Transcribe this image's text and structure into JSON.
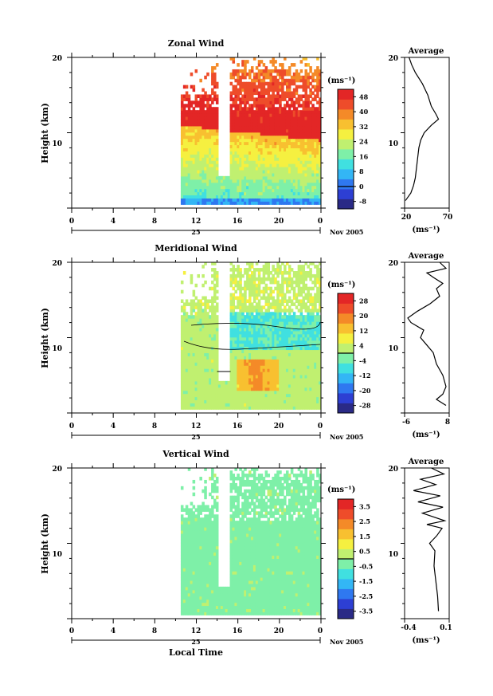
{
  "figure": {
    "date_label": "Nov 2005",
    "xlabel": "Local Time",
    "x_ticks": [
      "0",
      "4",
      "8",
      "12",
      "16",
      "20",
      "0"
    ],
    "day_label": "25"
  },
  "chart_data": [
    {
      "type": "heatmap",
      "title": "Zonal Wind",
      "ylabel": "Height (km)",
      "y_ticks": [
        "10",
        "20"
      ],
      "ylim": [
        0,
        20
      ],
      "colorbar_unit": "(ms⁻¹)",
      "colorbar_labels": [
        "48",
        "40",
        "32",
        "24",
        "16",
        "8",
        "0",
        "-8"
      ],
      "colorbar_min": -12,
      "colorbar_max": 52,
      "field": {
        "low_value": 12,
        "high_value": 50,
        "jet_base_km": 11,
        "jet_slope_km": -2
      },
      "profile": {
        "title": "Average",
        "xlabel": "(ms⁻¹)",
        "x_ticks": [
          "20",
          "70"
        ],
        "xlim": [
          20,
          70
        ],
        "y_ticks": [
          "10",
          "20"
        ],
        "points": [
          [
            21,
            1
          ],
          [
            24,
            1.5
          ],
          [
            27,
            2
          ],
          [
            30,
            3
          ],
          [
            32,
            4
          ],
          [
            33,
            5
          ],
          [
            34,
            6
          ],
          [
            35,
            7
          ],
          [
            36,
            8
          ],
          [
            38,
            9
          ],
          [
            42,
            10
          ],
          [
            50,
            11
          ],
          [
            58,
            11.8
          ],
          [
            55,
            12.5
          ],
          [
            50,
            13.5
          ],
          [
            46,
            15
          ],
          [
            40,
            16.5
          ],
          [
            32,
            18
          ],
          [
            28,
            19
          ],
          [
            25,
            20
          ]
        ]
      }
    },
    {
      "type": "heatmap",
      "title": "Meridional Wind",
      "ylabel": "Height (km)",
      "y_ticks": [
        "10",
        "20"
      ],
      "ylim": [
        0,
        20
      ],
      "colorbar_unit": "(ms⁻¹)",
      "colorbar_labels": [
        "28",
        "20",
        "12",
        "4",
        "-4",
        "-12",
        "-20",
        "-28"
      ],
      "colorbar_min": -32,
      "colorbar_max": 32,
      "field": {
        "base_value": 2,
        "blue_band_km": 11,
        "peak_value": 18
      },
      "profile": {
        "title": "Average",
        "xlabel": "(ms⁻¹)",
        "x_ticks": [
          "-6",
          "8"
        ],
        "xlim": [
          -6,
          8
        ],
        "y_ticks": [
          "10",
          "20"
        ],
        "points": [
          [
            7,
            1
          ],
          [
            4,
            1.8
          ],
          [
            6,
            2.5
          ],
          [
            7,
            3.5
          ],
          [
            6,
            5
          ],
          [
            4,
            6.5
          ],
          [
            3,
            8
          ],
          [
            1,
            9
          ],
          [
            -1,
            10
          ],
          [
            0,
            11
          ],
          [
            -4,
            12
          ],
          [
            -5,
            12.6
          ],
          [
            -2,
            13.5
          ],
          [
            2,
            14.5
          ],
          [
            5,
            15.5
          ],
          [
            4,
            16.5
          ],
          [
            6,
            17.2
          ],
          [
            3,
            18
          ],
          [
            1,
            18.6
          ],
          [
            7,
            19.2
          ],
          [
            5,
            20
          ]
        ]
      }
    },
    {
      "type": "heatmap",
      "title": "Vertical Wind",
      "ylabel": "Height (km)",
      "y_ticks": [
        "10",
        "20"
      ],
      "ylim": [
        0,
        20
      ],
      "colorbar_unit": "(ms⁻¹)",
      "colorbar_labels": [
        "3.5",
        "2.5",
        "1.5",
        "0.5",
        "-0.5",
        "-1.5",
        "-2.5",
        "-3.5"
      ],
      "colorbar_min": -4,
      "colorbar_max": 4,
      "field": {
        "base_value": -0.2
      },
      "profile": {
        "title": "Average",
        "xlabel": "(ms⁻¹)",
        "x_ticks": [
          "-0.4",
          "0.1"
        ],
        "xlim": [
          -0.4,
          0.1
        ],
        "y_ticks": [
          "10",
          "20"
        ],
        "points": [
          [
            -0.02,
            1
          ],
          [
            -0.03,
            3
          ],
          [
            -0.05,
            5
          ],
          [
            -0.07,
            7
          ],
          [
            -0.06,
            9
          ],
          [
            -0.12,
            10
          ],
          [
            -0.04,
            11
          ],
          [
            0.02,
            12
          ],
          [
            -0.15,
            12.5
          ],
          [
            0.05,
            13
          ],
          [
            -0.2,
            14
          ],
          [
            0.03,
            14.8
          ],
          [
            -0.25,
            15.5
          ],
          [
            0.0,
            16.3
          ],
          [
            -0.3,
            17
          ],
          [
            -0.05,
            17.8
          ],
          [
            -0.22,
            18.5
          ],
          [
            0.04,
            19.2
          ],
          [
            -0.1,
            20
          ]
        ]
      }
    }
  ]
}
